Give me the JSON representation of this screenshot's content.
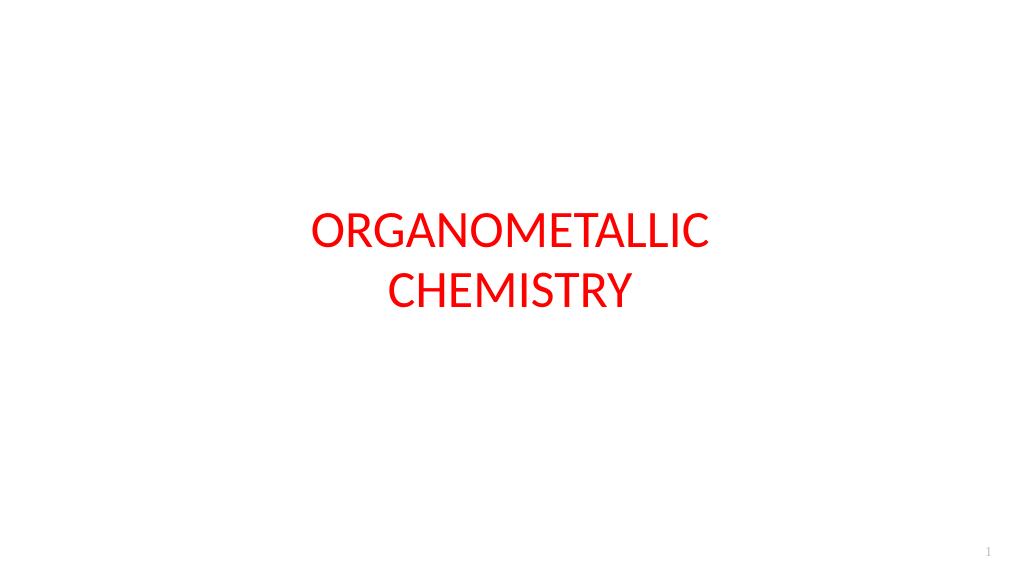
{
  "slide": {
    "title_line1": "ORGANOMETALLIC",
    "title_line2": "CHEMISTRY",
    "title_color": "#ff0000",
    "title_fontsize": 52,
    "title_fontweight": 400,
    "background_color": "#ffffff"
  },
  "footer": {
    "page_number": "1",
    "page_number_color": "#bfbfbf",
    "page_number_fontsize": 14
  }
}
